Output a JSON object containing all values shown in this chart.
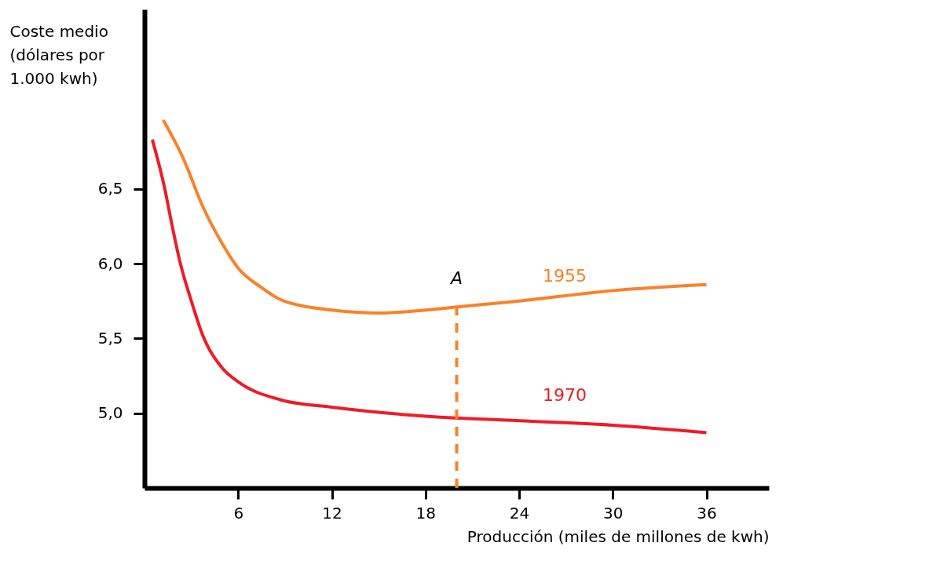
{
  "chart_data": {
    "type": "line",
    "xlabel": "Producción (miles de millones de kwh)",
    "ylabel": "Coste medio (dólares por 1.000 kwh)",
    "xlim": [
      0,
      40
    ],
    "xticks": [
      6,
      12,
      18,
      24,
      30,
      36
    ],
    "ylim": [
      4.5,
      7.7
    ],
    "yticks": [
      {
        "value": 5,
        "label": "5,0"
      },
      {
        "value": 5.5,
        "label": "5,5"
      },
      {
        "value": 6,
        "label": "6,0"
      },
      {
        "value": 6.5,
        "label": "6,5"
      }
    ],
    "series": [
      {
        "name": "1955",
        "color": "#fb8128",
        "x": [
          1.2,
          2.5,
          3.7,
          5,
          6,
          7.5,
          8.7,
          10,
          12,
          15,
          18,
          20,
          24,
          30,
          36
        ],
        "values": [
          6.96,
          6.7,
          6.39,
          6.13,
          5.97,
          5.84,
          5.76,
          5.72,
          5.69,
          5.67,
          5.69,
          5.71,
          5.75,
          5.82,
          5.86
        ]
      },
      {
        "name": "1970",
        "color": "#ee1c25",
        "x": [
          0.5,
          1.3,
          1.7,
          2.3,
          3,
          3.7,
          5,
          6,
          8.7,
          12,
          18,
          24,
          30,
          36
        ],
        "values": [
          6.83,
          6.5,
          6.29,
          6.0,
          5.75,
          5.53,
          5.3,
          5.21,
          5.09,
          5.04,
          4.98,
          4.95,
          4.92,
          4.87
        ]
      },
      {
        "color": "#fb8128",
        "line_style": "dashed",
        "x": [
          20,
          20
        ],
        "values": [
          4.5,
          5.71
        ]
      }
    ],
    "annotations": [
      {
        "text": "A",
        "x": 20,
        "y": 5.71
      }
    ]
  }
}
